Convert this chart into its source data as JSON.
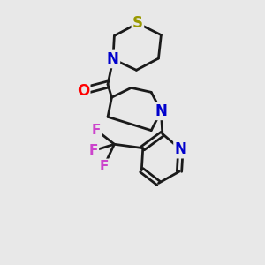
{
  "bg_color": "#e8e8e8",
  "bond_color": "#1a1a1a",
  "N_color": "#0000cc",
  "S_color": "#999900",
  "O_color": "#ff0000",
  "F_color": "#cc44cc",
  "line_width": 2.0,
  "font_size_atom": 12,
  "font_size_label": 11,
  "xlim": [
    0,
    10
  ],
  "ylim": [
    0,
    10
  ]
}
